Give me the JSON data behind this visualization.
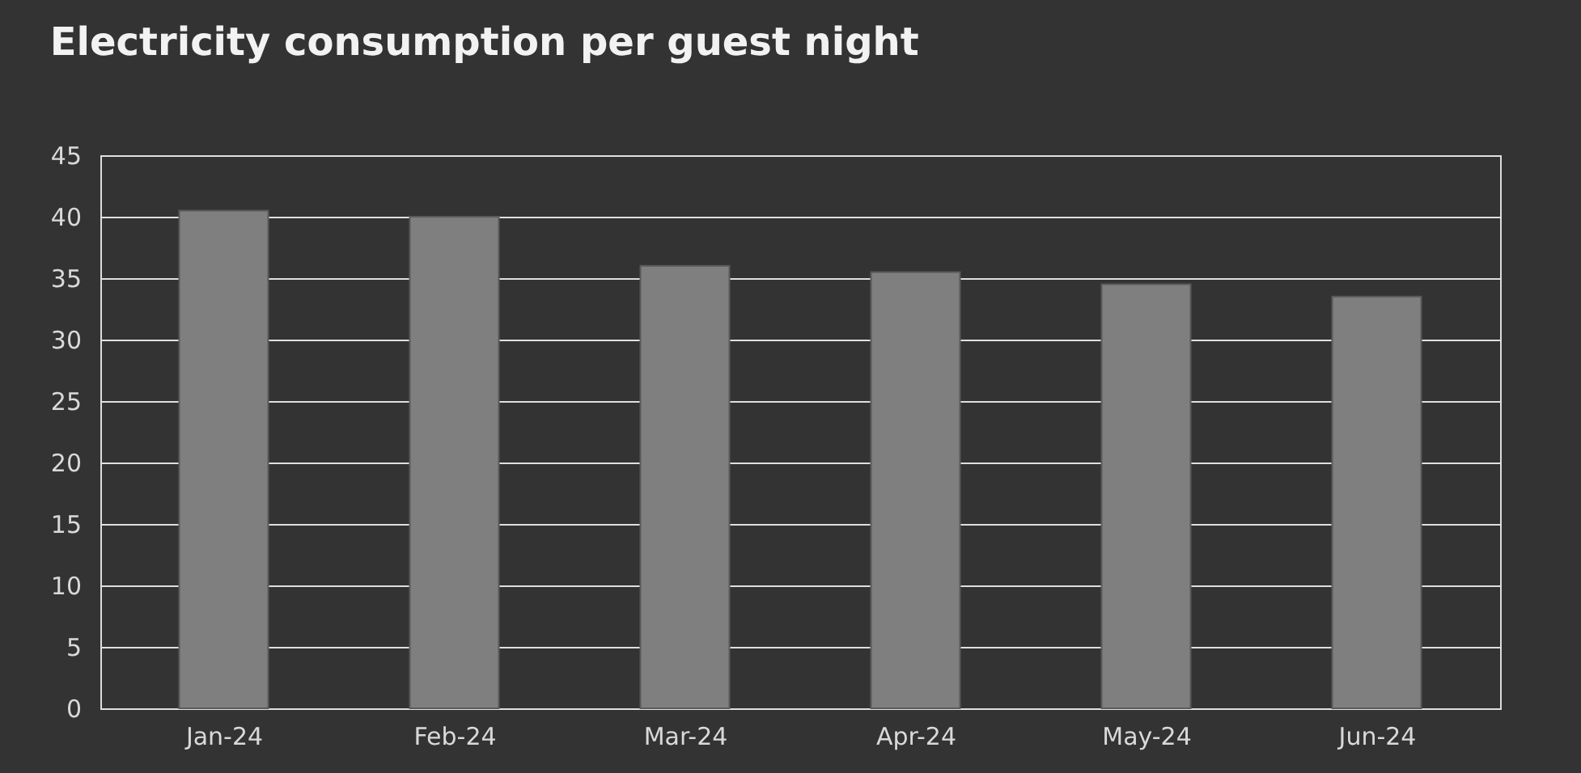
{
  "chart_data": {
    "type": "bar",
    "title": "Electricity consumption per guest night",
    "categories": [
      "Jan-24",
      "Feb-24",
      "Mar-24",
      "Apr-24",
      "May-24",
      "Jun-24"
    ],
    "values": [
      40.5,
      40,
      36,
      35.5,
      34.5,
      33.5
    ],
    "color": "#7f7f7f",
    "ylim": [
      0,
      45
    ],
    "yticks": [
      0,
      5,
      10,
      15,
      20,
      25,
      30,
      35,
      40,
      45
    ],
    "grid": "y"
  }
}
